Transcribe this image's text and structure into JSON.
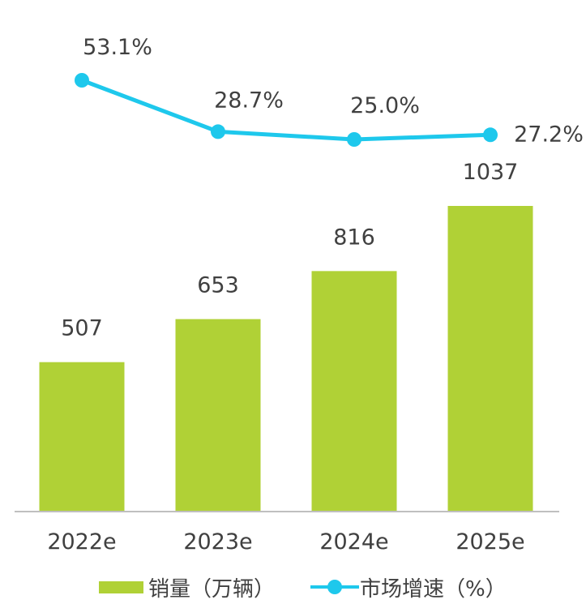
{
  "chart_data": {
    "type": "bar",
    "categories": [
      "2022e",
      "2023e",
      "2024e",
      "2025e"
    ],
    "series": [
      {
        "name": "销量（万辆）",
        "type": "bar",
        "values": [
          507,
          653,
          816,
          1037
        ],
        "labels": [
          "507",
          "653",
          "816",
          "1037"
        ],
        "color": "#b0d136"
      },
      {
        "name": "市场增速（%）",
        "type": "line",
        "values": [
          53.1,
          28.7,
          25.0,
          27.2
        ],
        "labels": [
          "53.1%",
          "28.7%",
          "25.0%",
          "27.2%"
        ],
        "color": "#1ec8ec"
      }
    ],
    "ylim_bar": [
      0,
      1037
    ],
    "ylim_line": [
      25.0,
      53.1
    ],
    "grid": false,
    "legend_position": "bottom",
    "colors": {
      "axis": "#bfbfbf",
      "text": "#404040"
    }
  }
}
